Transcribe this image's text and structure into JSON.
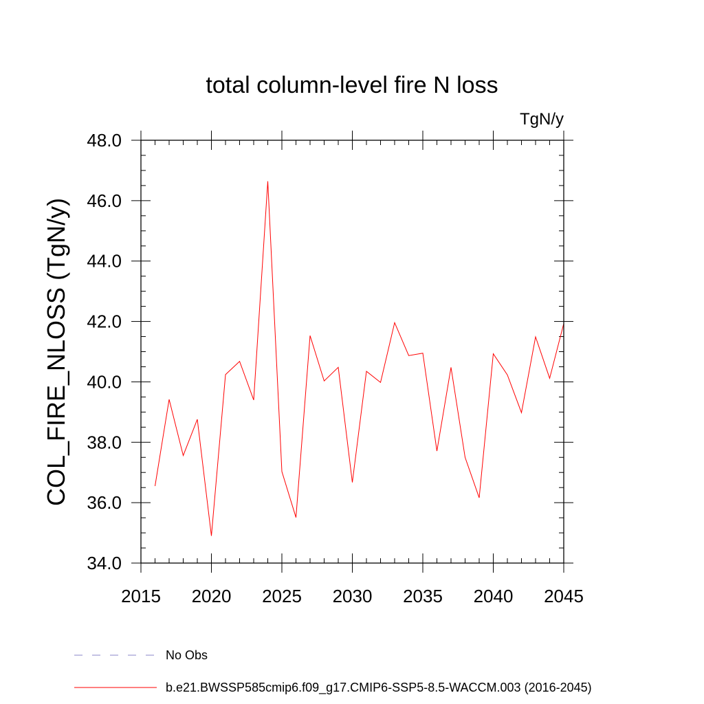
{
  "chart_data": {
    "type": "line",
    "title": "total column-level fire N loss",
    "units_label": "TgN/y",
    "ylabel": "COL_FIRE_NLOSS  (TgN/y)",
    "xlabel": "",
    "xlim": [
      2015,
      2045
    ],
    "ylim": [
      34.0,
      48.0
    ],
    "x_ticks": [
      2015,
      2020,
      2025,
      2030,
      2035,
      2040,
      2045
    ],
    "x_tick_labels": [
      "2015",
      "2020",
      "2025",
      "2030",
      "2035",
      "2040",
      "2045"
    ],
    "y_ticks": [
      34,
      36,
      38,
      40,
      42,
      44,
      46,
      48
    ],
    "y_tick_labels": [
      "34.0",
      "36.0",
      "38.0",
      "40.0",
      "42.0",
      "44.0",
      "46.0",
      "48.0"
    ],
    "grid": false,
    "series": [
      {
        "name": "b.e21.BWSSP585cmip6.f09_g17.CMIP6-SSP5-8.5-WACCM.003 (2016-2045)",
        "color": "#ff0000",
        "x": [
          2016,
          2017,
          2018,
          2019,
          2020,
          2021,
          2022,
          2023,
          2024,
          2025,
          2026,
          2027,
          2028,
          2029,
          2030,
          2031,
          2032,
          2033,
          2034,
          2035,
          2036,
          2037,
          2038,
          2039,
          2040,
          2041,
          2042,
          2043,
          2044,
          2045
        ],
        "y": [
          36.55,
          39.42,
          37.56,
          38.76,
          34.9,
          40.24,
          40.68,
          39.4,
          46.64,
          37.03,
          35.51,
          41.53,
          40.03,
          40.48,
          36.67,
          40.35,
          39.98,
          41.96,
          40.87,
          40.95,
          37.71,
          40.48,
          37.5,
          36.16,
          40.93,
          40.23,
          38.98,
          41.49,
          40.12,
          41.93
        ]
      }
    ],
    "legend": {
      "placement": "bottom-left",
      "entries": [
        {
          "label": "No Obs",
          "color": "#8a86c8",
          "style": "dashed"
        },
        {
          "label": "b.e21.BWSSP585cmip6.f09_g17.CMIP6-SSP5-8.5-WACCM.003 (2016-2045)",
          "color": "#ff0000",
          "style": "solid"
        }
      ]
    }
  }
}
